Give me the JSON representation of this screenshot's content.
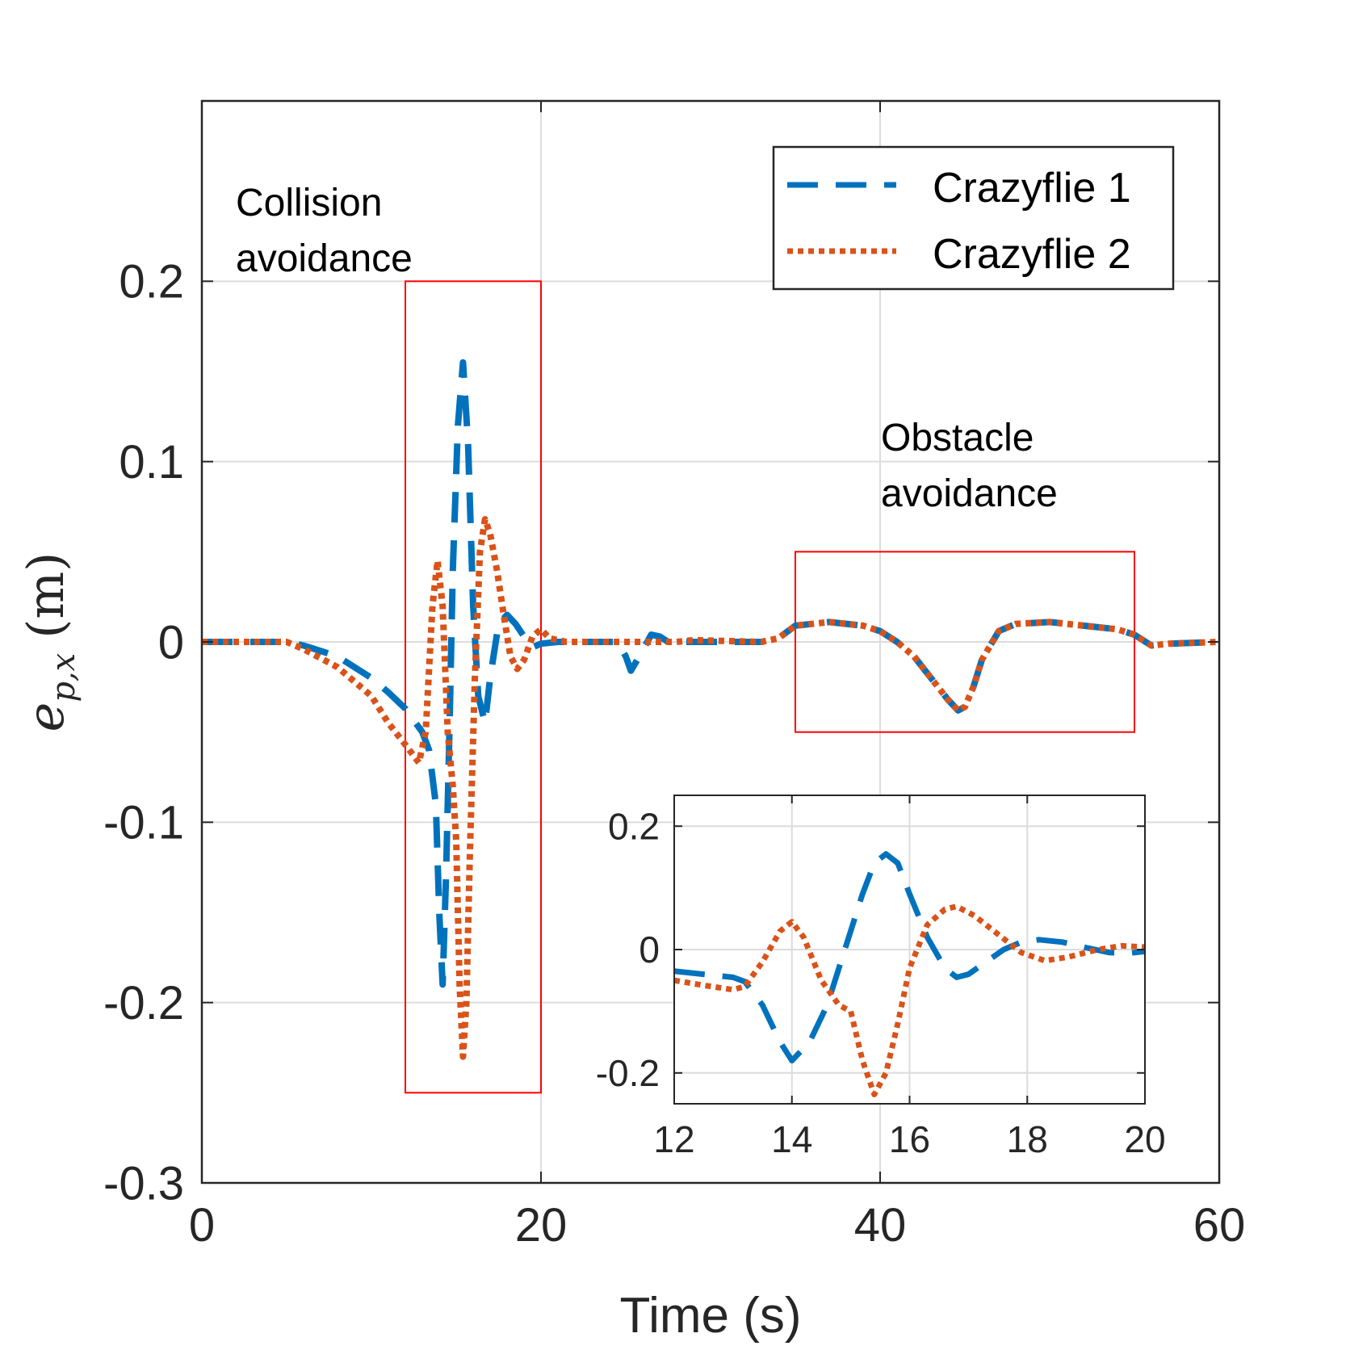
{
  "chart_data": [
    {
      "type": "line",
      "panel": "main",
      "xlabel": "Time (s)",
      "ylabel": {
        "symbol": "e",
        "subscript": "p,x",
        "unit": "(m)"
      },
      "xlim": [
        0,
        60
      ],
      "ylim": [
        -0.3,
        0.3
      ],
      "xticks": [
        0,
        20,
        40,
        60
      ],
      "yticks": [
        -0.3,
        -0.2,
        -0.1,
        0,
        0.1,
        0.2
      ],
      "ytick_labels": [
        "-0.3",
        "-0.2",
        "-0.1",
        "0",
        "0.1",
        "0.2"
      ],
      "xtick_labels": [
        "0",
        "20",
        "40",
        "60"
      ],
      "grid": true,
      "legend": {
        "placement": "top-right",
        "entries": [
          "Crazyflie 1",
          "Crazyflie 2"
        ]
      },
      "annotations": [
        {
          "lines": [
            "Collision",
            "avoidance"
          ],
          "box": {
            "x": [
              12,
              20
            ],
            "y": [
              -0.25,
              0.2
            ]
          }
        },
        {
          "lines": [
            "Obstacle",
            "avoidance"
          ],
          "box": {
            "x": [
              35,
              55
            ],
            "y": [
              -0.05,
              0.05
            ]
          }
        }
      ],
      "series": [
        {
          "name": "Crazyflie 1",
          "color": "#0072BD",
          "style": "dashed",
          "points": [
            [
              0,
              0
            ],
            [
              5,
              0
            ],
            [
              6,
              -0.002
            ],
            [
              8,
              -0.008
            ],
            [
              10,
              -0.02
            ],
            [
              11,
              -0.028
            ],
            [
              12,
              -0.037
            ],
            [
              13,
              -0.05
            ],
            [
              13.4,
              -0.06
            ],
            [
              13.8,
              -0.09
            ],
            [
              14,
              -0.15
            ],
            [
              14.2,
              -0.19
            ],
            [
              14.4,
              -0.13
            ],
            [
              14.6,
              -0.05
            ],
            [
              14.8,
              0.04
            ],
            [
              15.1,
              0.12
            ],
            [
              15.4,
              0.155
            ],
            [
              15.7,
              0.11
            ],
            [
              16,
              0.02
            ],
            [
              16.3,
              -0.03
            ],
            [
              16.7,
              -0.045
            ],
            [
              17,
              -0.02
            ],
            [
              17.5,
              0.01
            ],
            [
              18,
              0.015
            ],
            [
              18.5,
              0.01
            ],
            [
              19,
              0.003
            ],
            [
              19.5,
              -0.003
            ],
            [
              20,
              -0.001
            ],
            [
              21,
              0
            ],
            [
              24.5,
              0
            ],
            [
              25,
              -0.008
            ],
            [
              25.3,
              -0.016
            ],
            [
              25.8,
              -0.008
            ],
            [
              26.5,
              0.004
            ],
            [
              27,
              0.003
            ],
            [
              27.5,
              0
            ],
            [
              33,
              0
            ],
            [
              34,
              0.002
            ],
            [
              35,
              0.009
            ],
            [
              37,
              0.011
            ],
            [
              39,
              0.009
            ],
            [
              40,
              0.006
            ],
            [
              41,
              0
            ],
            [
              42,
              -0.008
            ],
            [
              43,
              -0.02
            ],
            [
              44,
              -0.032
            ],
            [
              44.6,
              -0.038
            ],
            [
              45,
              -0.036
            ],
            [
              45.5,
              -0.025
            ],
            [
              46,
              -0.01
            ],
            [
              47,
              0.006
            ],
            [
              48,
              0.01
            ],
            [
              50,
              0.011
            ],
            [
              52,
              0.009
            ],
            [
              54,
              0.007
            ],
            [
              55,
              0.004
            ],
            [
              56,
              -0.002
            ],
            [
              57,
              -0.001
            ],
            [
              60,
              0
            ]
          ]
        },
        {
          "name": "Crazyflie 2",
          "color": "#D95319",
          "style": "dotted",
          "points": [
            [
              0,
              0
            ],
            [
              5,
              0
            ],
            [
              6,
              -0.004
            ],
            [
              8,
              -0.014
            ],
            [
              10,
              -0.03
            ],
            [
              11,
              -0.045
            ],
            [
              12,
              -0.057
            ],
            [
              12.8,
              -0.067
            ],
            [
              13.2,
              -0.05
            ],
            [
              13.6,
              0.02
            ],
            [
              13.9,
              0.045
            ],
            [
              14.2,
              0.02
            ],
            [
              14.5,
              -0.05
            ],
            [
              14.8,
              -0.08
            ],
            [
              15,
              -0.11
            ],
            [
              15.2,
              -0.19
            ],
            [
              15.4,
              -0.23
            ],
            [
              15.6,
              -0.2
            ],
            [
              15.8,
              -0.12
            ],
            [
              16.1,
              -0.02
            ],
            [
              16.4,
              0.05
            ],
            [
              16.7,
              0.068
            ],
            [
              17,
              0.06
            ],
            [
              17.4,
              0.04
            ],
            [
              17.8,
              0.015
            ],
            [
              18.2,
              -0.008
            ],
            [
              18.6,
              -0.015
            ],
            [
              19,
              -0.01
            ],
            [
              19.5,
              0.003
            ],
            [
              20,
              0.007
            ],
            [
              20.5,
              0.002
            ],
            [
              21.5,
              0
            ],
            [
              27,
              0
            ],
            [
              28,
              0
            ],
            [
              29,
              0.001
            ],
            [
              33,
              0
            ],
            [
              34,
              0.002
            ],
            [
              35,
              0.009
            ],
            [
              37,
              0.011
            ],
            [
              39,
              0.009
            ],
            [
              40,
              0.006
            ],
            [
              41,
              0
            ],
            [
              42,
              -0.008
            ],
            [
              43,
              -0.02
            ],
            [
              44,
              -0.032
            ],
            [
              44.6,
              -0.038
            ],
            [
              45,
              -0.036
            ],
            [
              45.5,
              -0.025
            ],
            [
              46,
              -0.01
            ],
            [
              47,
              0.006
            ],
            [
              48,
              0.01
            ],
            [
              50,
              0.011
            ],
            [
              52,
              0.009
            ],
            [
              54,
              0.007
            ],
            [
              55,
              0.004
            ],
            [
              56,
              -0.002
            ],
            [
              57,
              -0.001
            ],
            [
              60,
              0
            ]
          ]
        }
      ]
    },
    {
      "type": "line",
      "panel": "inset",
      "xlim": [
        12,
        20
      ],
      "ylim": [
        -0.25,
        0.25
      ],
      "xticks": [
        12,
        14,
        16,
        18,
        20
      ],
      "xtick_labels": [
        "12",
        "14",
        "16",
        "18",
        "20"
      ],
      "yticks": [
        -0.2,
        0,
        0.2
      ],
      "ytick_labels": [
        "-0.2",
        "0",
        "0.2"
      ],
      "grid": true,
      "series": [
        {
          "name": "Crazyflie 1",
          "color": "#0072BD",
          "style": "dashed",
          "points": [
            [
              12,
              -0.035
            ],
            [
              12.5,
              -0.04
            ],
            [
              13,
              -0.045
            ],
            [
              13.2,
              -0.052
            ],
            [
              13.5,
              -0.09
            ],
            [
              13.8,
              -0.15
            ],
            [
              14,
              -0.18
            ],
            [
              14.3,
              -0.15
            ],
            [
              14.6,
              -0.09
            ],
            [
              14.9,
              0.0
            ],
            [
              15.2,
              0.09
            ],
            [
              15.4,
              0.14
            ],
            [
              15.6,
              0.155
            ],
            [
              15.8,
              0.14
            ],
            [
              16,
              0.09
            ],
            [
              16.3,
              0.02
            ],
            [
              16.6,
              -0.03
            ],
            [
              16.8,
              -0.045
            ],
            [
              17,
              -0.04
            ],
            [
              17.3,
              -0.02
            ],
            [
              17.6,
              0.0
            ],
            [
              17.9,
              0.012
            ],
            [
              18.2,
              0.016
            ],
            [
              18.6,
              0.012
            ],
            [
              19,
              0.003
            ],
            [
              19.4,
              -0.005
            ],
            [
              19.7,
              -0.006
            ],
            [
              20,
              -0.003
            ]
          ]
        },
        {
          "name": "Crazyflie 2",
          "color": "#D95319",
          "style": "dotted",
          "points": [
            [
              12,
              -0.05
            ],
            [
              12.5,
              -0.058
            ],
            [
              13,
              -0.065
            ],
            [
              13.2,
              -0.06
            ],
            [
              13.5,
              -0.02
            ],
            [
              13.8,
              0.03
            ],
            [
              14,
              0.045
            ],
            [
              14.2,
              0.02
            ],
            [
              14.5,
              -0.05
            ],
            [
              14.8,
              -0.09
            ],
            [
              15,
              -0.1
            ],
            [
              15.2,
              -0.18
            ],
            [
              15.4,
              -0.235
            ],
            [
              15.6,
              -0.2
            ],
            [
              15.8,
              -0.12
            ],
            [
              16,
              -0.03
            ],
            [
              16.3,
              0.04
            ],
            [
              16.6,
              0.065
            ],
            [
              16.8,
              0.07
            ],
            [
              17.1,
              0.055
            ],
            [
              17.5,
              0.025
            ],
            [
              17.9,
              -0.005
            ],
            [
              18.3,
              -0.018
            ],
            [
              18.7,
              -0.012
            ],
            [
              19.2,
              0.0
            ],
            [
              19.6,
              0.006
            ],
            [
              20,
              0.004
            ]
          ]
        }
      ]
    }
  ]
}
